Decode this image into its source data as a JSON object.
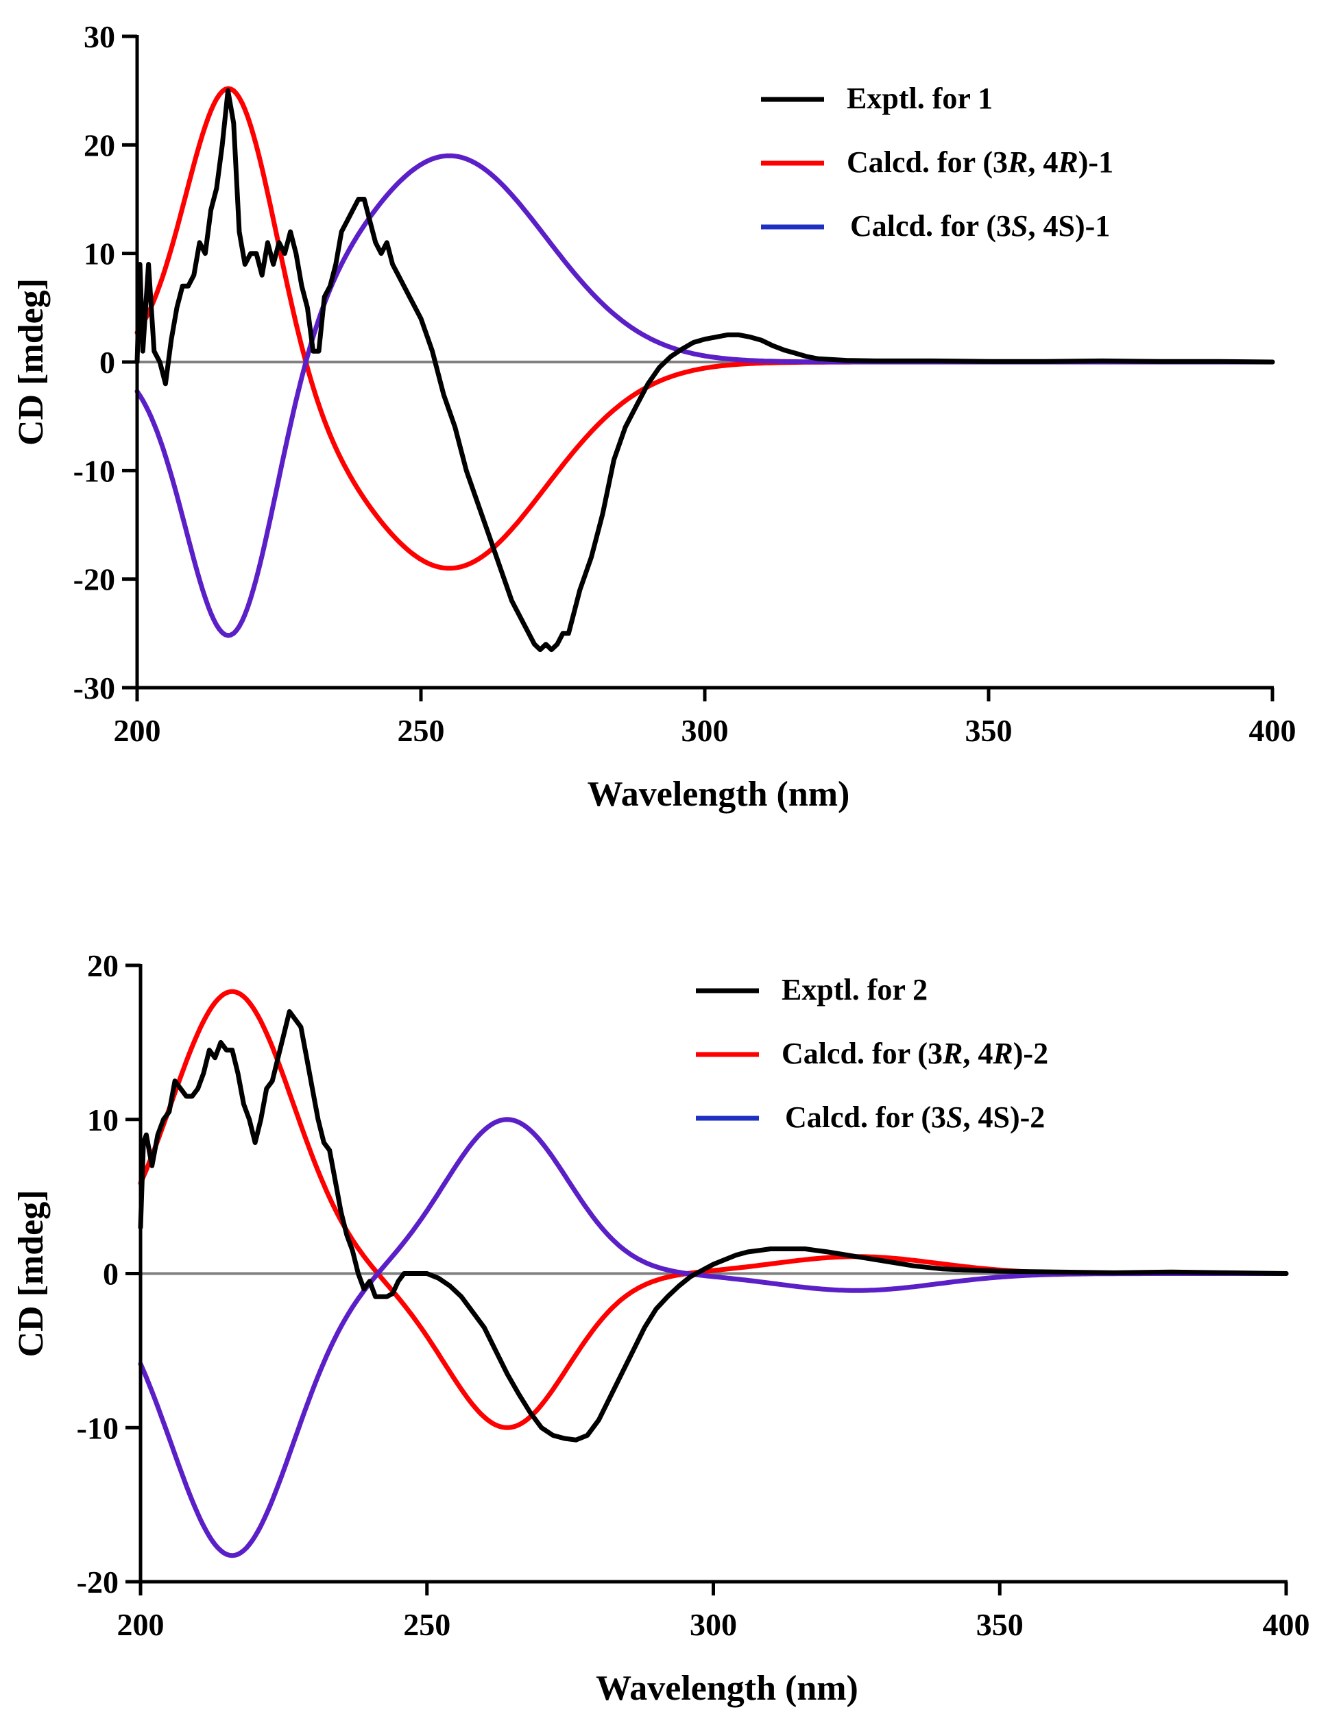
{
  "chart_data": [
    {
      "type": "line",
      "xlabel": "Wavelength (nm)",
      "ylabel": "CD [mdeg]",
      "xlim": [
        200,
        400
      ],
      "ylim": [
        -30,
        30
      ],
      "xticks": [
        200,
        250,
        300,
        350,
        400
      ],
      "yticks": [
        30,
        20,
        10,
        0,
        -10,
        -20,
        -30
      ],
      "xtick_labels": [
        "200",
        "250",
        "300",
        "350",
        "400"
      ],
      "ytick_labels": [
        "30",
        "20",
        "10",
        "0",
        "-10",
        "-20",
        "-30"
      ],
      "zero_line": true,
      "legend_position": "top-right",
      "series": [
        {
          "name": "Exptl. for 1",
          "legend": {
            "prefix": "Exptl. for 1",
            "parts": []
          },
          "color": "#000000",
          "x": [
            200,
            200.5,
            201,
            202,
            203,
            204,
            205,
            206,
            207,
            208,
            209,
            210,
            211,
            212,
            213,
            214,
            215,
            216,
            217,
            218,
            219,
            220,
            221,
            222,
            223,
            224,
            225,
            226,
            227,
            228,
            229,
            230,
            231,
            232,
            233,
            234,
            235,
            236,
            237,
            238,
            239,
            240,
            241,
            242,
            243,
            244,
            245,
            246,
            248,
            250,
            252,
            254,
            256,
            258,
            260,
            262,
            264,
            266,
            268,
            270,
            271,
            272,
            273,
            274,
            275,
            276,
            277,
            278,
            280,
            282,
            284,
            286,
            288,
            290,
            292,
            294,
            296,
            298,
            300,
            302,
            304,
            306,
            308,
            310,
            312,
            314,
            316,
            318,
            320,
            325,
            330,
            340,
            350,
            360,
            370,
            380,
            390,
            400
          ],
          "y": [
            0,
            9,
            1,
            9,
            1,
            0,
            -2,
            2,
            5,
            7,
            7,
            8,
            11,
            10,
            14,
            16,
            20,
            25,
            22,
            12,
            9,
            10,
            10,
            8,
            11,
            9,
            11,
            10,
            12,
            10,
            7,
            5,
            1,
            1,
            6,
            7,
            9,
            12,
            13,
            14,
            15,
            15,
            13,
            11,
            10,
            11,
            9,
            8,
            6,
            4,
            1,
            -3,
            -6,
            -10,
            -13,
            -16,
            -19,
            -22,
            -24,
            -26,
            -26.5,
            -26,
            -26.5,
            -26,
            -25,
            -25,
            -23,
            -21,
            -18,
            -14,
            -9,
            -6,
            -4,
            -2,
            -0.5,
            0.5,
            1.2,
            1.8,
            2.1,
            2.3,
            2.5,
            2.5,
            2.3,
            2,
            1.5,
            1.1,
            0.8,
            0.5,
            0.3,
            0.15,
            0.1,
            0.1,
            0.05,
            0.05,
            0.1,
            0.05,
            0.05,
            0
          ]
        },
        {
          "name": "Calcd. for (3R, 4R)-1",
          "legend": {
            "prefix": "Calcd. for (3",
            "parts": [
              "R",
              ", 4",
              "R",
              ")-1"
            ]
          },
          "color": "#ff0000",
          "gauss": {
            "a1": 26.6,
            "c1": 216.5,
            "s1": 11,
            "a2": -19,
            "c2": 255,
            "s2": 24,
            "offset": 0
          }
        },
        {
          "name": "Calcd. for (3S, 4S)-1",
          "legend": {
            "prefix": "Calcd. for (3",
            "parts": [
              "S",
              ", 4S)-1"
            ]
          },
          "color": "#5b1fc8",
          "legend_color": "#1f2fc0",
          "gauss": {
            "a1": -26.6,
            "c1": 216.5,
            "s1": 11,
            "a2": 19,
            "c2": 255,
            "s2": 24,
            "offset": 0
          }
        }
      ]
    },
    {
      "type": "line",
      "xlabel": "Wavelength (nm)",
      "ylabel": "CD [mdeg]",
      "xlim": [
        200,
        400
      ],
      "ylim": [
        -20,
        20
      ],
      "xticks": [
        200,
        250,
        300,
        350,
        400
      ],
      "yticks": [
        20,
        10,
        0,
        -10,
        -20
      ],
      "xtick_labels": [
        "200",
        "250",
        "300",
        "350",
        "400"
      ],
      "ytick_labels": [
        "20",
        "10",
        "0",
        "-10",
        "-20"
      ],
      "zero_line": true,
      "legend_position": "top-right",
      "series": [
        {
          "name": "Exptl. for 2",
          "legend": {
            "prefix": "Exptl. for 2",
            "parts": []
          },
          "color": "#000000",
          "x": [
            200,
            200.5,
            201,
            202,
            203,
            204,
            205,
            206,
            207,
            208,
            209,
            210,
            211,
            212,
            213,
            214,
            215,
            216,
            217,
            218,
            219,
            220,
            221,
            222,
            223,
            224,
            225,
            226,
            227,
            228,
            229,
            230,
            231,
            232,
            233,
            234,
            235,
            236,
            237,
            238,
            239,
            240,
            241,
            242,
            243,
            244,
            245,
            246,
            248,
            250,
            252,
            254,
            256,
            258,
            260,
            262,
            264,
            266,
            268,
            270,
            272,
            274,
            276,
            278,
            280,
            282,
            284,
            286,
            288,
            290,
            292,
            294,
            296,
            298,
            300,
            302,
            304,
            306,
            308,
            310,
            312,
            314,
            316,
            318,
            320,
            325,
            330,
            335,
            340,
            350,
            360,
            370,
            380,
            390,
            400
          ],
          "y": [
            3,
            8.5,
            9,
            7,
            9,
            10,
            10.5,
            12.5,
            12,
            11.5,
            11.5,
            12,
            13,
            14.5,
            14,
            15,
            14.5,
            14.5,
            13,
            11,
            10,
            8.5,
            10,
            12,
            12.5,
            14,
            15.5,
            17,
            16.5,
            16,
            14,
            12,
            10,
            8.5,
            8,
            6,
            4,
            2.5,
            1.5,
            0,
            -1,
            -0.5,
            -1.5,
            -1.5,
            -1.5,
            -1.3,
            -0.5,
            0,
            0,
            0,
            -0.3,
            -0.8,
            -1.5,
            -2.5,
            -3.5,
            -5,
            -6.5,
            -7.8,
            -9,
            -10,
            -10.5,
            -10.7,
            -10.8,
            -10.5,
            -9.5,
            -8,
            -6.5,
            -5,
            -3.5,
            -2.3,
            -1.5,
            -0.8,
            -0.2,
            0.2,
            0.6,
            0.9,
            1.2,
            1.4,
            1.5,
            1.6,
            1.6,
            1.6,
            1.6,
            1.5,
            1.4,
            1.1,
            0.8,
            0.5,
            0.3,
            0.15,
            0.1,
            0.05,
            0.1,
            0.05,
            0
          ]
        },
        {
          "name": "Calcd. for (3R, 4R)-2",
          "legend": {
            "prefix": "Calcd. for (3",
            "parts": [
              "R",
              ", 4",
              "R",
              ")-2"
            ]
          },
          "color": "#ff0000",
          "gauss": {
            "a1": 18.3,
            "c1": 216,
            "s1": 15,
            "a2": -10,
            "c2": 264,
            "s2": 15,
            "a3": 1.1,
            "c3": 325,
            "s3": 20,
            "offset": 0
          }
        },
        {
          "name": "Calcd. for (3S, 4S)-2",
          "legend": {
            "prefix": "Calcd. for (3",
            "parts": [
              "S",
              ", 4S)-2"
            ]
          },
          "color": "#5b1fc8",
          "legend_color": "#1f2fc0",
          "gauss": {
            "a1": -18.3,
            "c1": 216,
            "s1": 15,
            "a2": 10,
            "c2": 264,
            "s2": 15,
            "a3": -1.1,
            "c3": 325,
            "s3": 20,
            "offset": 0
          }
        }
      ]
    }
  ]
}
